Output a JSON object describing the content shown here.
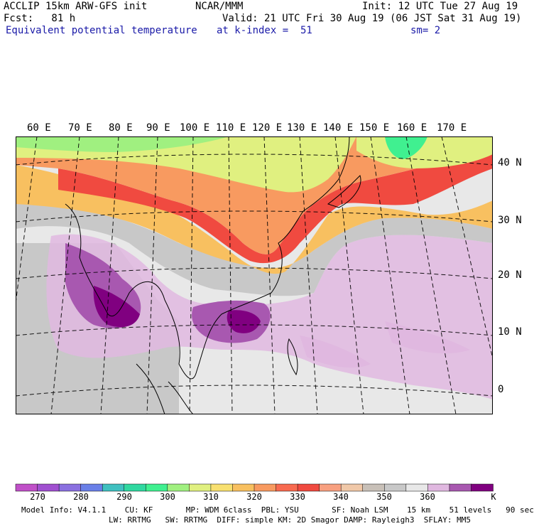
{
  "header": {
    "line1_left": "ACCLIP 15km ARW-GFS init",
    "line1_center": "NCAR/MMM",
    "line1_right": "Init: 12 UTC Tue 27 Aug 19",
    "line2_left": "Fcst:   81 h",
    "line2_right": "Valid: 21 UTC Fri 30 Aug 19 (06 JST Sat 31 Aug 19)",
    "line3_field": "Equivalent potential temperature",
    "line3_level": "at k-index =  51",
    "line3_smooth": "sm= 2"
  },
  "map": {
    "longitude_labels": [
      "60 E",
      "70 E",
      "80 E",
      "90 E",
      "100 E",
      "110 E",
      "120 E",
      "130 E",
      "140 E",
      "150 E",
      "160 E",
      "170 E"
    ],
    "latitude_labels": [
      "40 N",
      "30 N",
      "20 N",
      "10 N",
      "0"
    ]
  },
  "colorbar": {
    "colors": [
      "#c050c8",
      "#a050d0",
      "#8a70e0",
      "#6a80e8",
      "#40c0c0",
      "#30d8a0",
      "#40f090",
      "#a0f080",
      "#e0f080",
      "#f8e070",
      "#f8c060",
      "#f89a60",
      "#f86a50",
      "#f04a40",
      "#f8a080",
      "#f0c8a8",
      "#c8c0b8",
      "#c8c8c8",
      "#e8e8e8",
      "#e0b8e0",
      "#a858b0",
      "#800080"
    ],
    "tick_labels": [
      "270",
      "280",
      "290",
      "300",
      "310",
      "320",
      "330",
      "340",
      "350",
      "360"
    ],
    "unit": "K"
  },
  "footer": {
    "line1": "Model Info: V4.1.1    CU: KF       MP: WDM 6class  PBL: YSU       SF: Noah LSM    15 km    51 levels   90 sec",
    "line2": "LW: RRTMG   SW: RRTMG  DIFF: simple KM: 2D Smagor DAMP: Rayleigh3  SFLAY: MM5"
  }
}
